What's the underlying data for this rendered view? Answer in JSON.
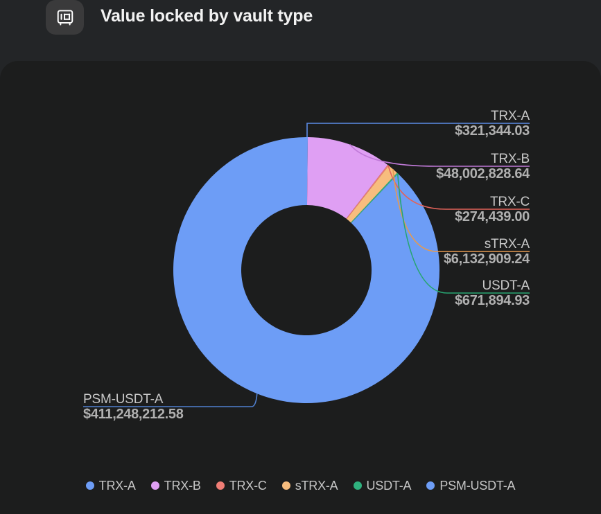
{
  "header": {
    "title": "Value locked by vault type",
    "icon": "vault-safe-icon"
  },
  "theme": {
    "page_bg": "#232527",
    "card_bg": "#1c1d1d",
    "icon_chip_bg": "#3a3a3b",
    "title_color": "#f2f2f2",
    "label_name_color": "#c7c7c7",
    "label_value_color": "#b0b0b0",
    "legend_text_color": "#c6c6c6"
  },
  "chart_data": {
    "type": "pie",
    "subtype": "donut",
    "title": "Value locked by vault type",
    "legend_position": "bottom",
    "unit": "USD",
    "categories": [
      "TRX-A",
      "TRX-B",
      "TRX-C",
      "sTRX-A",
      "USDT-A",
      "PSM-USDT-A"
    ],
    "values": [
      321344.03,
      48002828.64,
      274439.0,
      6132909.24,
      671894.93,
      411248212.58
    ],
    "value_labels": [
      "$321,344.03",
      "$48,002,828.64",
      "$274,439.00",
      "$6,132,909.24",
      "$671,894.93",
      "$411,248,212.58"
    ],
    "colors": [
      "#6d9df6",
      "#df9ff3",
      "#ef7d75",
      "#f7bd7e",
      "#2fb17e",
      "#6d9df6"
    ],
    "line_colors": [
      "#5c8de8",
      "#c07ad8",
      "#e2635a",
      "#e59a50",
      "#28a572",
      "#5080d0"
    ]
  }
}
